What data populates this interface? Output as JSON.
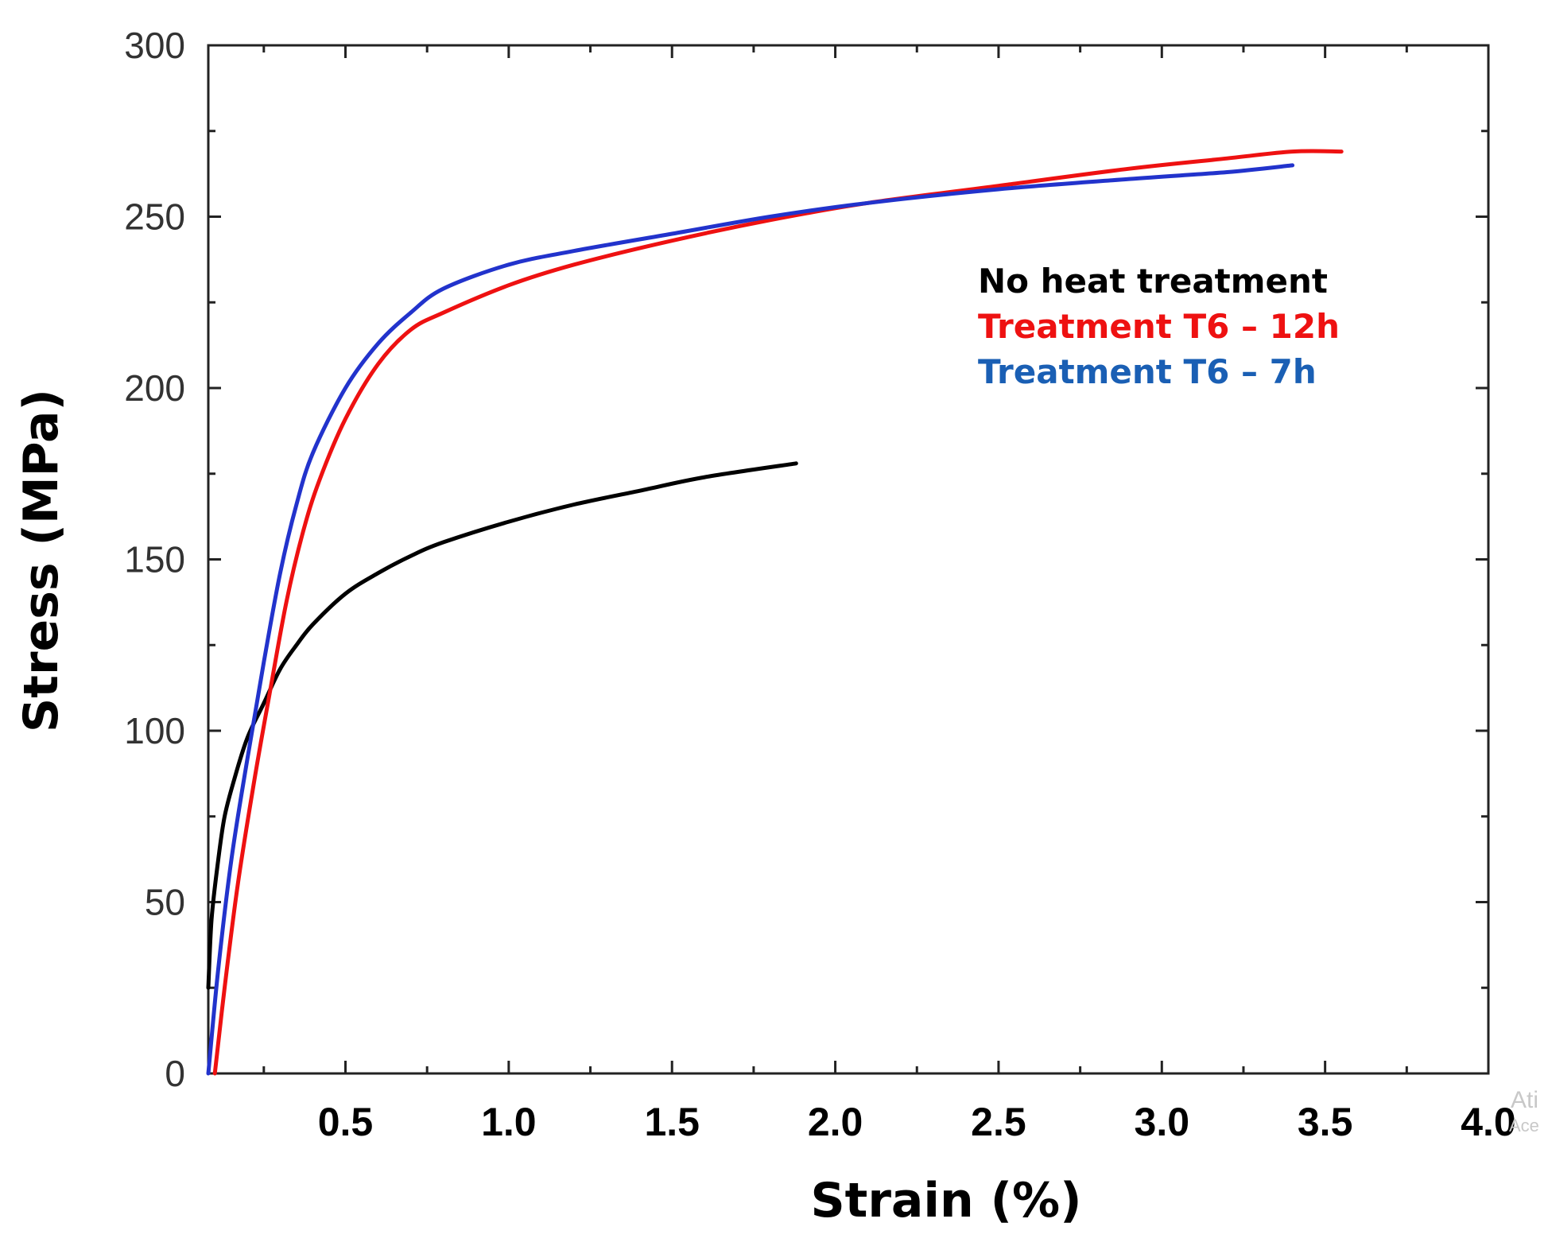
{
  "chart_data": {
    "type": "line",
    "title": "",
    "xlabel": "Strain (%)",
    "ylabel": "Stress (MPa)",
    "xlim": [
      0.08,
      4.0
    ],
    "ylim": [
      0,
      300
    ],
    "x_ticks": [
      0.5,
      1.0,
      1.5,
      2.0,
      2.5,
      3.0,
      3.5,
      4.0
    ],
    "x_tick_labels": [
      "0.5",
      "1.0",
      "1.5",
      "2.0",
      "2.5",
      "3.0",
      "3.5",
      "4.0"
    ],
    "y_ticks": [
      0,
      50,
      100,
      150,
      200,
      250,
      300
    ],
    "y_tick_labels": [
      "0",
      "50",
      "100",
      "150",
      "200",
      "250",
      "300"
    ],
    "grid": false,
    "legend_position": "top-right",
    "series": [
      {
        "name": "No heat treatment",
        "color": "#000000",
        "x": [
          0.08,
          0.09,
          0.11,
          0.13,
          0.16,
          0.2,
          0.25,
          0.3,
          0.35,
          0.4,
          0.5,
          0.6,
          0.7,
          0.8,
          1.0,
          1.2,
          1.4,
          1.6,
          1.88
        ],
        "y": [
          25,
          45,
          62,
          75,
          86,
          98,
          108,
          118,
          125,
          131,
          140,
          146,
          151,
          155,
          161,
          166,
          170,
          174,
          178
        ]
      },
      {
        "name": "Treatment T6 – 12h",
        "color": "#ee1111",
        "x": [
          0.1,
          0.13,
          0.17,
          0.22,
          0.27,
          0.32,
          0.37,
          0.42,
          0.5,
          0.6,
          0.7,
          0.8,
          1.0,
          1.2,
          1.5,
          1.8,
          2.1,
          2.5,
          2.9,
          3.2,
          3.4,
          3.55
        ],
        "y": [
          0,
          25,
          55,
          85,
          112,
          138,
          158,
          173,
          191,
          207,
          217,
          222,
          230,
          236,
          243,
          249,
          254,
          259,
          264,
          267,
          269,
          269
        ]
      },
      {
        "name": "Treatment T6 – 7h",
        "color": "#2233cc",
        "x": [
          0.08,
          0.11,
          0.15,
          0.2,
          0.25,
          0.3,
          0.35,
          0.4,
          0.5,
          0.6,
          0.7,
          0.8,
          1.0,
          1.2,
          1.5,
          1.8,
          2.1,
          2.5,
          2.9,
          3.2,
          3.4
        ],
        "y": [
          0,
          30,
          62,
          92,
          120,
          146,
          166,
          181,
          200,
          213,
          222,
          229,
          236,
          240,
          245,
          250,
          254,
          258,
          261,
          263,
          265
        ]
      }
    ],
    "legend": [
      {
        "label": "No heat treatment",
        "color": "#000000"
      },
      {
        "label": "Treatment T6 – 12h",
        "color": "#ee1111"
      },
      {
        "label": "Treatment T6 – 7h",
        "color": "#1a5fb4"
      }
    ]
  },
  "watermark": {
    "line1": "Ati",
    "line2": "Ace"
  }
}
